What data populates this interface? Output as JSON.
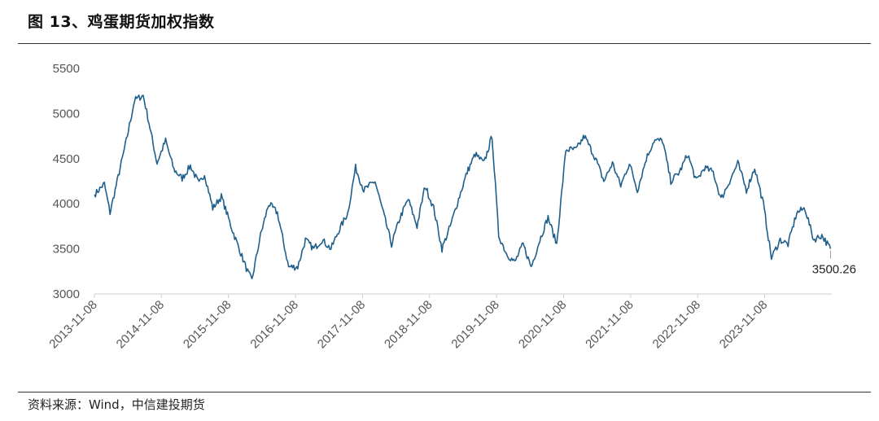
{
  "title": "图 13、鸡蛋期货加权指数",
  "source": "资料来源：Wind，中信建投期货",
  "chart_data": {
    "type": "line",
    "title": "图 13、鸡蛋期货加权指数",
    "xlabel": "",
    "ylabel": "",
    "ylim": [
      3000,
      5500
    ],
    "yticks": [
      3000,
      3500,
      4000,
      4500,
      5000,
      5500
    ],
    "xlim": [
      "2013-11-08",
      "2024-11-08"
    ],
    "xticks": [
      "2013-11-08",
      "2014-11-08",
      "2015-11-08",
      "2016-11-08",
      "2017-11-08",
      "2018-11-08",
      "2019-11-08",
      "2020-11-08",
      "2021-11-08",
      "2022-11-08",
      "2023-11-08"
    ],
    "grid": false,
    "legend": "none",
    "line_color": "#1f5f8b",
    "end_label": "3500.26",
    "series": [
      {
        "x": [
          "2013-11-08",
          "2014-01-01",
          "2014-02-01",
          "2014-03-01",
          "2014-05-01",
          "2014-06-15",
          "2014-08-01",
          "2014-09-01",
          "2014-10-15",
          "2014-12-01",
          "2015-01-15",
          "2015-03-01",
          "2015-04-15",
          "2015-06-01",
          "2015-07-01",
          "2015-08-15",
          "2015-10-01",
          "2015-12-01",
          "2016-01-15",
          "2016-02-20",
          "2016-03-15",
          "2016-05-01",
          "2016-06-15",
          "2016-08-01",
          "2016-10-01",
          "2016-11-20",
          "2017-01-01",
          "2017-02-15",
          "2017-04-01",
          "2017-05-20",
          "2017-07-01",
          "2017-08-20",
          "2017-10-01",
          "2017-11-15",
          "2018-01-15",
          "2018-03-01",
          "2018-04-15",
          "2018-06-01",
          "2018-07-15",
          "2018-09-01",
          "2018-10-15",
          "2018-12-01",
          "2019-01-15",
          "2019-03-01",
          "2019-04-15",
          "2019-06-01",
          "2019-07-15",
          "2019-09-01",
          "2019-10-15",
          "2019-11-20",
          "2020-01-01",
          "2020-02-15",
          "2020-04-01",
          "2020-05-15",
          "2020-07-01",
          "2020-08-15",
          "2020-10-01",
          "2020-11-20",
          "2021-01-15",
          "2021-03-01",
          "2021-05-01",
          "2021-06-15",
          "2021-08-01",
          "2021-09-15",
          "2021-11-01",
          "2021-12-15",
          "2022-02-01",
          "2022-03-15",
          "2022-05-01",
          "2022-06-15",
          "2022-08-01",
          "2022-09-15",
          "2022-11-01",
          "2022-12-15",
          "2023-02-01",
          "2023-03-15",
          "2023-05-01",
          "2023-06-15",
          "2023-08-01",
          "2023-09-15",
          "2023-11-01",
          "2023-12-15",
          "2024-02-01",
          "2024-03-15",
          "2024-05-01",
          "2024-06-15",
          "2024-08-01",
          "2024-09-15",
          "2024-11-01"
        ],
        "values": [
          4100,
          4220,
          3900,
          4150,
          4700,
          5150,
          5200,
          4900,
          4450,
          4700,
          4380,
          4280,
          4420,
          4220,
          4330,
          3950,
          4080,
          3700,
          3450,
          3250,
          3150,
          3650,
          4000,
          3900,
          3300,
          3300,
          3600,
          3500,
          3600,
          3500,
          3700,
          3900,
          4400,
          4150,
          4250,
          3900,
          3550,
          3850,
          4050,
          3750,
          4200,
          3950,
          3500,
          3750,
          4050,
          4350,
          4550,
          4450,
          4750,
          3650,
          3450,
          3350,
          3550,
          3300,
          3600,
          3850,
          3550,
          4600,
          4600,
          4750,
          4500,
          4250,
          4450,
          4200,
          4450,
          4150,
          4500,
          4700,
          4700,
          4250,
          4350,
          4550,
          4250,
          4400,
          4350,
          4050,
          4250,
          4450,
          4150,
          4400,
          4000,
          3400,
          3600,
          3550,
          3900,
          3950,
          3600,
          3650,
          3500
        ]
      }
    ]
  }
}
